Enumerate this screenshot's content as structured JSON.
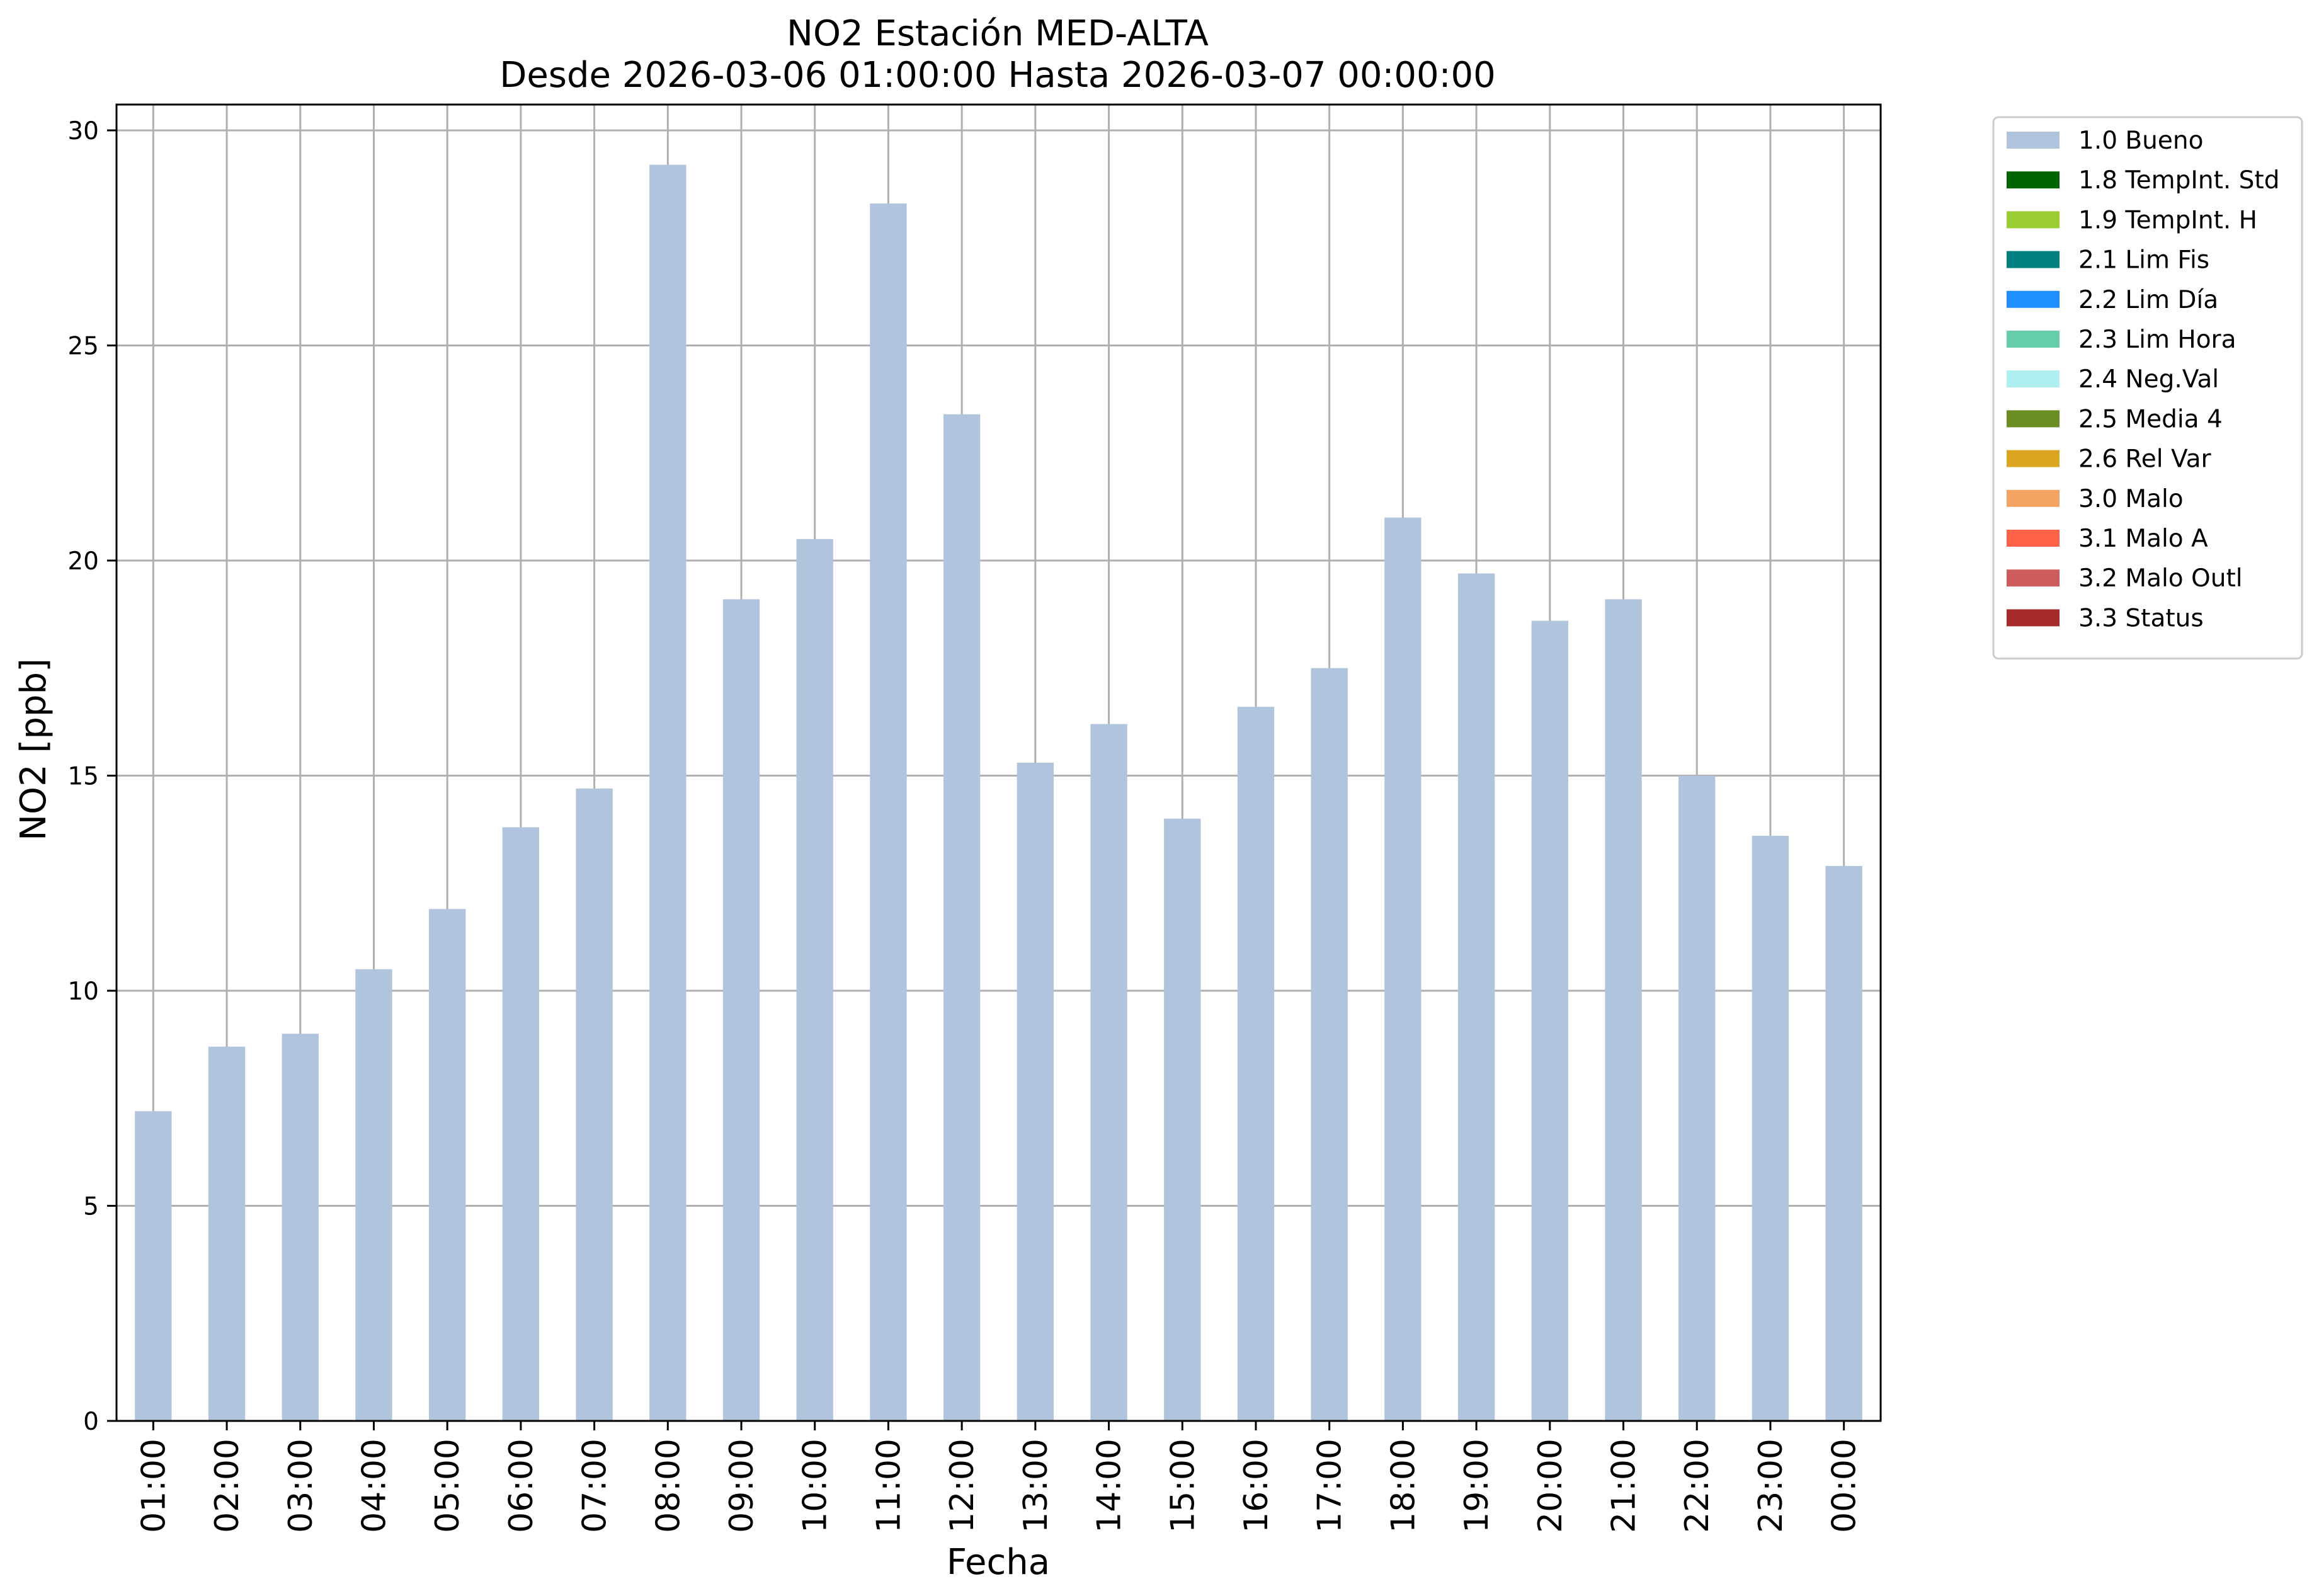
{
  "chart_data": {
    "type": "bar",
    "title": "NO2 Estación MED-ALTA",
    "subtitle": "Desde 2026-03-06 01:00:00 Hasta 2026-03-07 00:00:00",
    "xlabel": "Fecha",
    "ylabel": "NO2 [ppb]",
    "ylim": [
      0,
      30.6
    ],
    "yticks": [
      0,
      5,
      10,
      15,
      20,
      25,
      30
    ],
    "grid": true,
    "legend_position": "outside-top-right",
    "categories": [
      "01:00",
      "02:00",
      "03:00",
      "04:00",
      "05:00",
      "06:00",
      "07:00",
      "08:00",
      "09:00",
      "10:00",
      "11:00",
      "12:00",
      "13:00",
      "14:00",
      "15:00",
      "16:00",
      "17:00",
      "18:00",
      "19:00",
      "20:00",
      "21:00",
      "22:00",
      "23:00",
      "00:00"
    ],
    "series": [
      {
        "name": "1.0 Bueno",
        "color": "#b0c4de",
        "values": [
          7.2,
          8.7,
          9.0,
          10.5,
          11.9,
          13.8,
          14.7,
          29.2,
          19.1,
          20.5,
          28.3,
          23.4,
          15.3,
          16.2,
          14.0,
          16.6,
          17.5,
          21.0,
          19.7,
          18.6,
          19.1,
          15.0,
          13.6,
          12.9
        ]
      }
    ],
    "legend": [
      {
        "label": "1.0 Bueno",
        "color": "#b0c4de"
      },
      {
        "label": "1.8 TempInt. Std",
        "color": "#006400"
      },
      {
        "label": "1.9 TempInt. H",
        "color": "#9acd32"
      },
      {
        "label": "2.1 Lim Fis",
        "color": "#008080"
      },
      {
        "label": "2.2 Lim Día",
        "color": "#1e90ff"
      },
      {
        "label": "2.3 Lim Hora",
        "color": "#66cdaa"
      },
      {
        "label": "2.4 Neg.Val",
        "color": "#afeeee"
      },
      {
        "label": "2.5 Media 4",
        "color": "#6b8e23"
      },
      {
        "label": "2.6 Rel Var",
        "color": "#daa520"
      },
      {
        "label": "3.0 Malo",
        "color": "#f4a460"
      },
      {
        "label": "3.1 Malo A",
        "color": "#ff6347"
      },
      {
        "label": "3.2 Malo Outl",
        "color": "#cd5c5c"
      },
      {
        "label": "3.3 Status",
        "color": "#a52a2a"
      }
    ]
  }
}
